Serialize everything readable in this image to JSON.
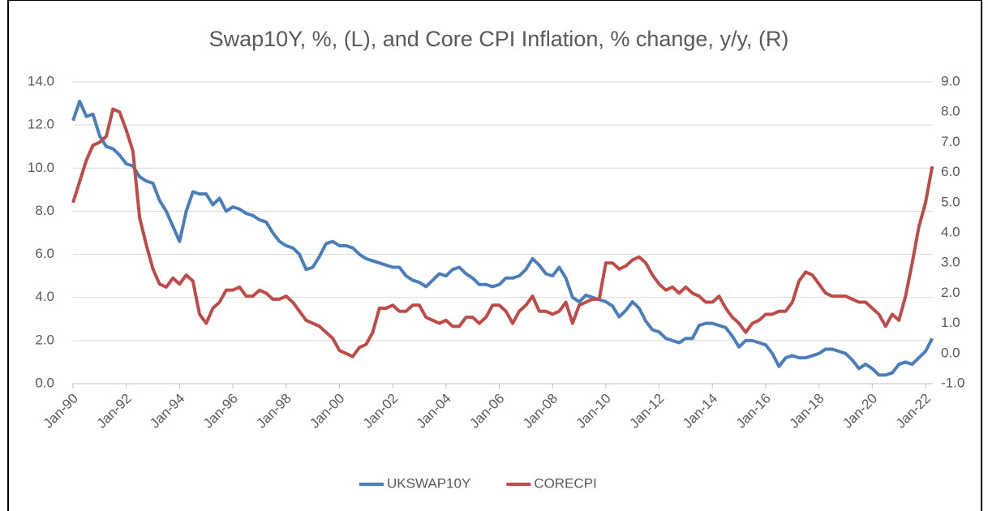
{
  "chart_data": {
    "type": "line",
    "title": "Swap10Y, %, (L), and Core CPI Inflation, % change, y/y, (R)",
    "categories": [
      "Jan-90",
      null,
      null,
      null,
      null,
      null,
      null,
      null,
      "Jan-92",
      null,
      null,
      null,
      null,
      null,
      null,
      null,
      "Jan-94",
      null,
      null,
      null,
      null,
      null,
      null,
      null,
      "Jan-96",
      null,
      null,
      null,
      null,
      null,
      null,
      null,
      "Jan-98",
      null,
      null,
      null,
      null,
      null,
      null,
      null,
      "Jan-00",
      null,
      null,
      null,
      null,
      null,
      null,
      null,
      "Jan-02",
      null,
      null,
      null,
      null,
      null,
      null,
      null,
      "Jan-04",
      null,
      null,
      null,
      null,
      null,
      null,
      null,
      "Jan-06",
      null,
      null,
      null,
      null,
      null,
      null,
      null,
      "Jan-08",
      null,
      null,
      null,
      null,
      null,
      null,
      null,
      "Jan-10",
      null,
      null,
      null,
      null,
      null,
      null,
      null,
      "Jan-12",
      null,
      null,
      null,
      null,
      null,
      null,
      null,
      "Jan-14",
      null,
      null,
      null,
      null,
      null,
      null,
      null,
      "Jan-16",
      null,
      null,
      null,
      null,
      null,
      null,
      null,
      "Jan-18",
      null,
      null,
      null,
      null,
      null,
      null,
      null,
      "Jan-20",
      null,
      null,
      null,
      null,
      null,
      null,
      null,
      "Jan-22",
      null
    ],
    "series": [
      {
        "name": "UKSWAP10Y",
        "color": "#4a7ebb",
        "values": [
          12.2,
          13.1,
          12.4,
          12.5,
          11.5,
          11.0,
          10.9,
          10.6,
          10.2,
          10.1,
          9.6,
          9.4,
          9.3,
          8.5,
          8.0,
          7.3,
          6.6,
          8.0,
          8.9,
          8.8,
          8.8,
          8.3,
          8.6,
          8.0,
          8.2,
          8.1,
          7.9,
          7.8,
          7.6,
          7.5,
          7.0,
          6.6,
          6.4,
          6.3,
          6.0,
          5.3,
          5.4,
          5.9,
          6.5,
          6.6,
          6.4,
          6.4,
          6.3,
          6.0,
          5.8,
          5.7,
          5.6,
          5.5,
          5.4,
          5.4,
          5.0,
          4.8,
          4.7,
          4.5,
          4.8,
          5.1,
          5.0,
          5.3,
          5.4,
          5.1,
          4.9,
          4.6,
          4.6,
          4.5,
          4.6,
          4.9,
          4.9,
          5.0,
          5.3,
          5.8,
          5.5,
          5.1,
          5.0,
          5.4,
          4.9,
          4.0,
          3.8,
          4.1,
          4.0,
          3.9,
          3.8,
          3.6,
          3.1,
          3.4,
          3.8,
          3.5,
          2.9,
          2.5,
          2.4,
          2.1,
          2.0,
          1.9,
          2.1,
          2.1,
          2.7,
          2.8,
          2.8,
          2.7,
          2.6,
          2.2,
          1.7,
          2.0,
          2.0,
          1.9,
          1.8,
          1.4,
          0.8,
          1.2,
          1.3,
          1.2,
          1.2,
          1.3,
          1.4,
          1.6,
          1.6,
          1.5,
          1.4,
          1.1,
          0.7,
          0.9,
          0.7,
          0.4,
          0.4,
          0.5,
          0.9,
          1.0,
          0.9,
          1.2,
          1.5,
          2.1
        ]
      },
      {
        "name": "CORECPI",
        "color": "#be4b48",
        "axis": "y2",
        "values": [
          5.0,
          5.7,
          6.4,
          6.9,
          7.0,
          7.2,
          8.1,
          8.0,
          7.4,
          6.7,
          4.5,
          3.6,
          2.8,
          2.3,
          2.2,
          2.5,
          2.3,
          2.6,
          2.4,
          1.3,
          1.0,
          1.5,
          1.7,
          2.1,
          2.1,
          2.2,
          1.9,
          1.9,
          2.1,
          2.0,
          1.8,
          1.8,
          1.9,
          1.7,
          1.4,
          1.1,
          1.0,
          0.9,
          0.7,
          0.5,
          0.1,
          0.0,
          -0.1,
          0.2,
          0.3,
          0.7,
          1.5,
          1.5,
          1.6,
          1.4,
          1.4,
          1.6,
          1.6,
          1.2,
          1.1,
          1.0,
          1.1,
          0.9,
          0.9,
          1.2,
          1.2,
          1.0,
          1.2,
          1.6,
          1.6,
          1.4,
          1.0,
          1.4,
          1.6,
          1.9,
          1.4,
          1.4,
          1.3,
          1.4,
          1.7,
          1.0,
          1.6,
          1.7,
          1.8,
          1.8,
          3.0,
          3.0,
          2.8,
          2.9,
          3.1,
          3.2,
          3.0,
          2.6,
          2.3,
          2.1,
          2.2,
          2.0,
          2.2,
          2.0,
          1.9,
          1.7,
          1.7,
          1.9,
          1.5,
          1.2,
          1.0,
          0.7,
          1.0,
          1.1,
          1.3,
          1.3,
          1.4,
          1.4,
          1.7,
          2.4,
          2.7,
          2.6,
          2.3,
          2.0,
          1.9,
          1.9,
          1.9,
          1.8,
          1.7,
          1.7,
          1.5,
          1.3,
          0.9,
          1.3,
          1.1,
          1.9,
          3.0,
          4.2,
          5.0,
          6.2
        ]
      }
    ],
    "ylim": [
      0,
      14
    ],
    "yticks": [
      {
        "value": 0,
        "label": "0.0"
      },
      {
        "value": 2,
        "label": "2.0"
      },
      {
        "value": 4,
        "label": "4.0"
      },
      {
        "value": 6,
        "label": "6.0"
      },
      {
        "value": 8,
        "label": "8.0"
      },
      {
        "value": 10,
        "label": "10.0"
      },
      {
        "value": 12,
        "label": "12.0"
      },
      {
        "value": 14,
        "label": "14.0"
      }
    ],
    "y2lim": [
      -1,
      9
    ],
    "y2ticks": [
      {
        "value": -1,
        "label": "-1.0"
      },
      {
        "value": 0,
        "label": "0.0"
      },
      {
        "value": 1,
        "label": "1.0"
      },
      {
        "value": 2,
        "label": "2.0"
      },
      {
        "value": 3,
        "label": "3.0"
      },
      {
        "value": 4,
        "label": "4.0"
      },
      {
        "value": 5,
        "label": "5.0"
      },
      {
        "value": 6,
        "label": "6.0"
      },
      {
        "value": 7,
        "label": "7.0"
      },
      {
        "value": 8,
        "label": "8.0"
      },
      {
        "value": 9,
        "label": "9.0"
      }
    ],
    "grid": true,
    "legend": "bottom"
  }
}
